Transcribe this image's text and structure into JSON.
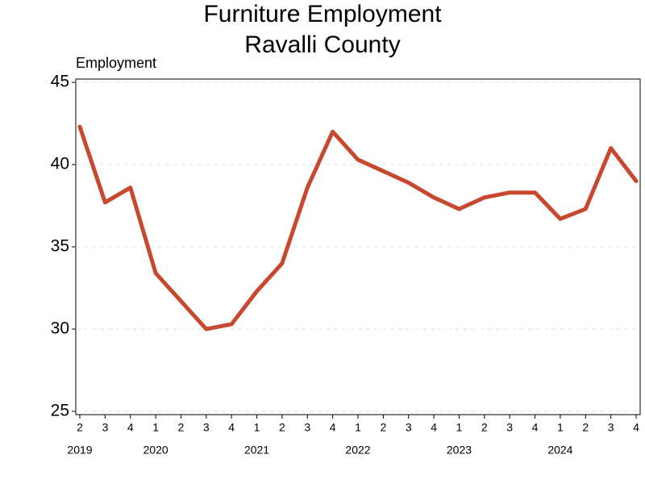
{
  "chart_data": {
    "type": "line",
    "title": "Furniture Employment",
    "subtitle": "Ravalli County",
    "ylabel": "Employment",
    "categories": [
      "2",
      "3",
      "4",
      "1",
      "2",
      "3",
      "4",
      "1",
      "2",
      "3",
      "4",
      "1",
      "2",
      "3",
      "4",
      "1",
      "2",
      "3",
      "4",
      "1",
      "2",
      "3",
      "4"
    ],
    "year_labels": [
      "2019",
      null,
      null,
      "2020",
      null,
      null,
      null,
      "2021",
      null,
      null,
      null,
      "2022",
      null,
      null,
      null,
      "2023",
      null,
      null,
      null,
      "2024",
      null,
      null,
      null
    ],
    "series": [
      {
        "name": "Employment",
        "color": "#c8472f",
        "values": [
          42.3,
          37.7,
          38.6,
          33.4,
          31.7,
          30.0,
          30.3,
          32.3,
          34.0,
          38.6,
          42.0,
          40.3,
          39.6,
          38.9,
          38.0,
          37.3,
          38.0,
          38.3,
          38.3,
          36.7,
          37.3,
          41.0,
          39.0
        ]
      }
    ],
    "ylim": [
      24.8,
      45.2
    ],
    "yticks": [
      25,
      30,
      35,
      40,
      45
    ],
    "grid": true
  }
}
